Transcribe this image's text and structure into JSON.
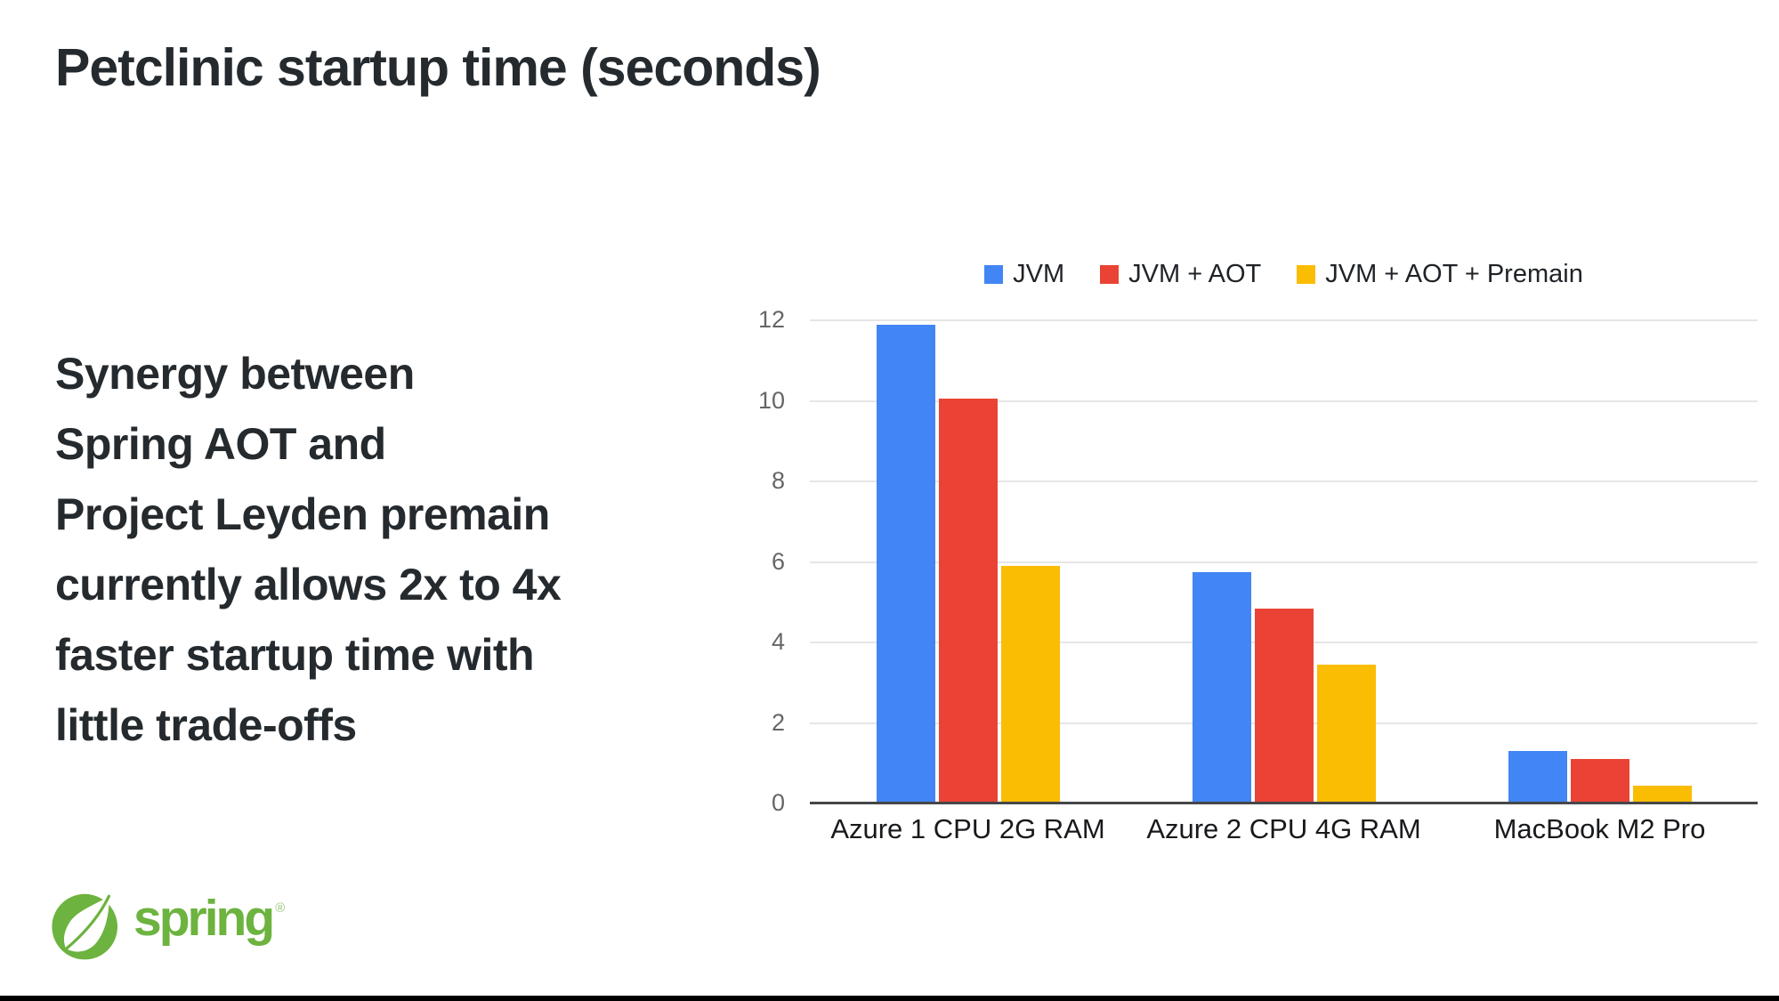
{
  "slide": {
    "title": "Petclinic startup time (seconds)",
    "message_lines": [
      "Synergy between",
      "Spring AOT and",
      "Project Leyden premain",
      "currently allows 2x to 4x",
      "faster startup time with",
      "little trade-offs"
    ],
    "footer_brand": "spring",
    "footer_trademark": "®"
  },
  "colors": {
    "text_dark": "#252a2e",
    "spring_green": "#6DB33F",
    "legend_text": "#1f2327",
    "axis_y_label": "#666666",
    "axis_x_label": "#17191c",
    "gridline": "#e6e6e6",
    "baseline": "#454749",
    "bottom_bar": "#000000",
    "background": "#ffffff"
  },
  "chart_data": {
    "type": "bar",
    "title": "Petclinic startup time (seconds)",
    "categories": [
      "Azure 1 CPU 2G RAM",
      "Azure 2 CPU 4G RAM",
      "MacBook M2 Pro"
    ],
    "series": [
      {
        "name": "JVM",
        "color": "#4285F4",
        "values": [
          11.9,
          5.75,
          1.3
        ]
      },
      {
        "name": "JVM + AOT",
        "color": "#EA4335",
        "values": [
          10.05,
          4.85,
          1.1
        ]
      },
      {
        "name": "JVM + AOT + Premain",
        "color": "#FBBC04",
        "values": [
          5.9,
          3.45,
          0.45
        ]
      }
    ],
    "xlabel": "",
    "ylabel": "",
    "ylim": [
      0,
      12
    ],
    "yticks": [
      0,
      2,
      4,
      6,
      8,
      10,
      12
    ],
    "grid": true,
    "legend_position": "top-center"
  }
}
